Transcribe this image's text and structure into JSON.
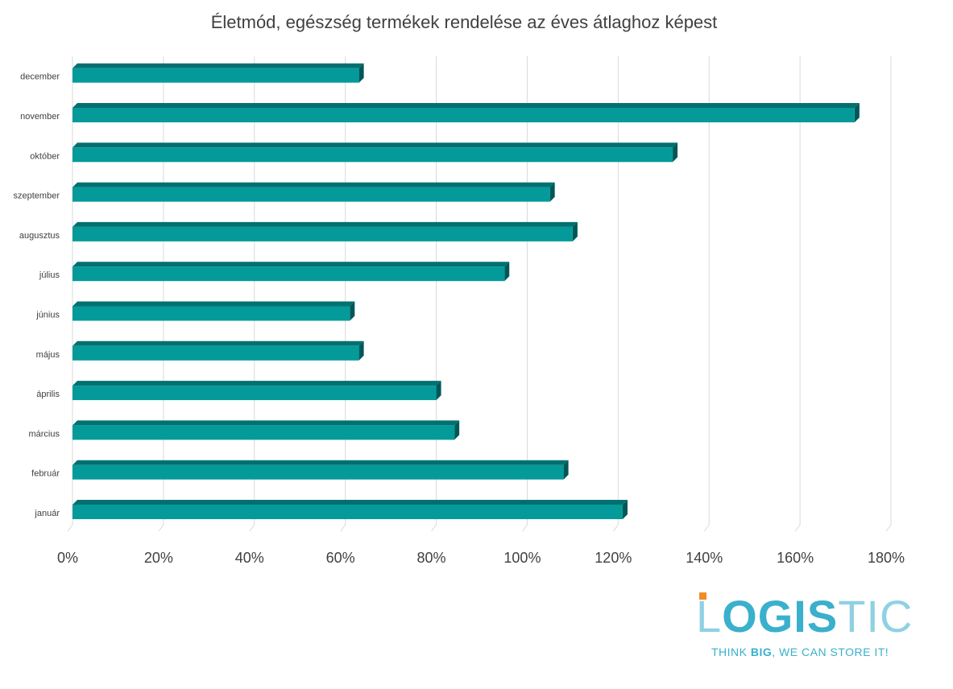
{
  "chart_data": {
    "type": "bar",
    "orientation": "horizontal",
    "title": "Életmód, egészség termékek rendelése az éves átlaghoz képest",
    "categories": [
      "január",
      "február",
      "március",
      "április",
      "május",
      "június",
      "július",
      "augusztus",
      "szeptember",
      "október",
      "november",
      "december"
    ],
    "values": [
      121,
      108,
      84,
      80,
      63,
      61,
      95,
      110,
      105,
      132,
      172,
      63
    ],
    "xlim": [
      0,
      180
    ],
    "xticks": [
      "0%",
      "20%",
      "40%",
      "60%",
      "80%",
      "100%",
      "120%",
      "140%",
      "160%",
      "180%"
    ],
    "grid": true,
    "xlabel": "",
    "ylabel": "",
    "colors": {
      "front": "#049a9a",
      "top": "#027070",
      "side": "#015757"
    }
  },
  "logo": {
    "letters_light": "L",
    "word_dark": "OGIS",
    "word_light": "TIC",
    "tagline_pre": "THINK ",
    "tagline_bold": "BIG",
    "tagline_post": ", WE CAN STORE IT!",
    "color_dark": "#3ab0cc",
    "color_light": "#8fd1e3",
    "color_accent": "#f28c28"
  }
}
